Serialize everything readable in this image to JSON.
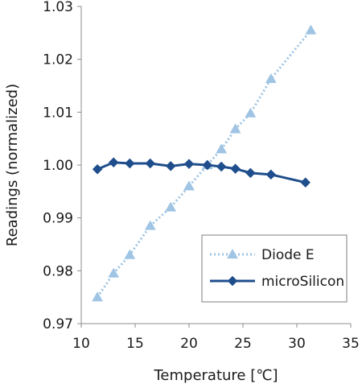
{
  "chart_data": {
    "type": "line",
    "title": "",
    "xlabel": "Temperature [℃]",
    "ylabel": "Readings (normalized)",
    "xlim": [
      10,
      35
    ],
    "ylim": [
      0.97,
      1.03
    ],
    "xticks": [
      "10",
      "15",
      "20",
      "25",
      "30",
      "35"
    ],
    "yticks": [
      "0.97",
      "0.98",
      "0.99",
      "1.00",
      "1.01",
      "1.02",
      "1.03"
    ],
    "grid": {
      "vertical": false,
      "horizontal": false
    },
    "legend_position": "bottom-right",
    "series": [
      {
        "name": "Diode E",
        "color": "#9fc4e4",
        "marker": "triangle",
        "line_style": "dotted",
        "x": [
          11.5,
          13.0,
          14.5,
          16.4,
          18.3,
          20.0,
          21.7,
          23.0,
          24.3,
          25.7,
          27.6,
          31.3
        ],
        "y": [
          0.975,
          0.9795,
          0.983,
          0.9885,
          0.992,
          0.996,
          1.0,
          1.003,
          1.0068,
          1.0098,
          1.0163,
          1.0255
        ]
      },
      {
        "name": "microSilicon",
        "color": "#1f4e8c",
        "marker": "diamond",
        "line_style": "solid",
        "x": [
          11.5,
          13.0,
          14.5,
          16.4,
          18.3,
          20.0,
          21.7,
          23.0,
          24.3,
          25.7,
          27.6,
          30.8
        ],
        "y": [
          0.9992,
          1.0005,
          1.0003,
          1.0003,
          0.9998,
          1.0002,
          1.0,
          0.9997,
          0.9993,
          0.9985,
          0.9982,
          0.9967
        ]
      }
    ]
  }
}
